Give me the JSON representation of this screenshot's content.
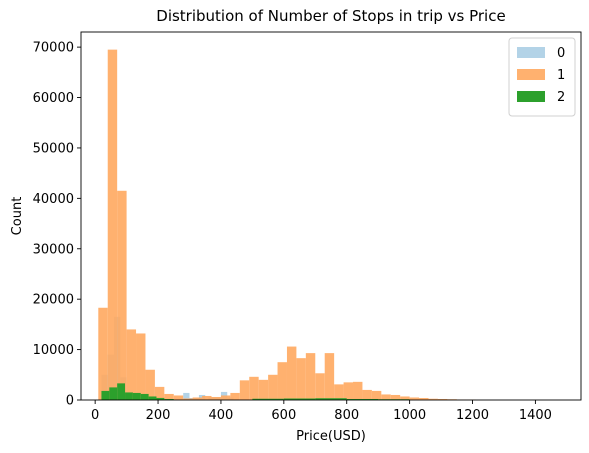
{
  "chart_data": {
    "type": "bar",
    "title": "Distribution of Number of Stops in trip vs Price",
    "xlabel": "Price(USD)",
    "ylabel": "Count",
    "xlim": [
      -45,
      1545
    ],
    "ylim": [
      0,
      73000
    ],
    "xticks": [
      0,
      200,
      400,
      600,
      800,
      1000,
      1200,
      1400
    ],
    "yticks": [
      0,
      10000,
      20000,
      30000,
      40000,
      50000,
      60000,
      70000
    ],
    "grid": false,
    "legend_position": "top-right",
    "series": [
      {
        "name": "0",
        "color": "#a6cbe3",
        "opacity": 0.85,
        "bins": [
          {
            "x0": 20,
            "x1": 40,
            "count": 5000
          },
          {
            "x0": 40,
            "x1": 60,
            "count": 9000
          },
          {
            "x0": 60,
            "x1": 80,
            "count": 16500
          },
          {
            "x0": 80,
            "x1": 100,
            "count": 4500
          },
          {
            "x0": 100,
            "x1": 120,
            "count": 1500
          },
          {
            "x0": 180,
            "x1": 220,
            "count": 600
          },
          {
            "x0": 280,
            "x1": 300,
            "count": 1400
          },
          {
            "x0": 300,
            "x1": 330,
            "count": 400
          },
          {
            "x0": 330,
            "x1": 350,
            "count": 1000
          },
          {
            "x0": 360,
            "x1": 400,
            "count": 500
          },
          {
            "x0": 400,
            "x1": 420,
            "count": 1600
          },
          {
            "x0": 420,
            "x1": 440,
            "count": 500
          }
        ]
      },
      {
        "name": "1",
        "color": "#ffa95f",
        "opacity": 0.9,
        "bins": [
          {
            "x0": 10,
            "x1": 40,
            "count": 18300
          },
          {
            "x0": 40,
            "x1": 70,
            "count": 69500
          },
          {
            "x0": 70,
            "x1": 100,
            "count": 41500
          },
          {
            "x0": 100,
            "x1": 130,
            "count": 14000
          },
          {
            "x0": 130,
            "x1": 160,
            "count": 13200
          },
          {
            "x0": 160,
            "x1": 190,
            "count": 6000
          },
          {
            "x0": 190,
            "x1": 220,
            "count": 2600
          },
          {
            "x0": 220,
            "x1": 250,
            "count": 1200
          },
          {
            "x0": 250,
            "x1": 280,
            "count": 900
          },
          {
            "x0": 280,
            "x1": 310,
            "count": 300
          },
          {
            "x0": 310,
            "x1": 340,
            "count": 500
          },
          {
            "x0": 340,
            "x1": 370,
            "count": 800
          },
          {
            "x0": 370,
            "x1": 400,
            "count": 600
          },
          {
            "x0": 400,
            "x1": 430,
            "count": 900
          },
          {
            "x0": 430,
            "x1": 460,
            "count": 1400
          },
          {
            "x0": 460,
            "x1": 490,
            "count": 3900
          },
          {
            "x0": 490,
            "x1": 520,
            "count": 4600
          },
          {
            "x0": 520,
            "x1": 550,
            "count": 4000
          },
          {
            "x0": 550,
            "x1": 580,
            "count": 5000
          },
          {
            "x0": 580,
            "x1": 610,
            "count": 7500
          },
          {
            "x0": 610,
            "x1": 640,
            "count": 10600
          },
          {
            "x0": 640,
            "x1": 670,
            "count": 8300
          },
          {
            "x0": 670,
            "x1": 700,
            "count": 9300
          },
          {
            "x0": 700,
            "x1": 730,
            "count": 5300
          },
          {
            "x0": 730,
            "x1": 760,
            "count": 9300
          },
          {
            "x0": 760,
            "x1": 790,
            "count": 3100
          },
          {
            "x0": 790,
            "x1": 820,
            "count": 3500
          },
          {
            "x0": 820,
            "x1": 850,
            "count": 3600
          },
          {
            "x0": 850,
            "x1": 880,
            "count": 2000
          },
          {
            "x0": 880,
            "x1": 910,
            "count": 1800
          },
          {
            "x0": 910,
            "x1": 940,
            "count": 1100
          },
          {
            "x0": 940,
            "x1": 970,
            "count": 1000
          },
          {
            "x0": 970,
            "x1": 1000,
            "count": 700
          },
          {
            "x0": 1000,
            "x1": 1030,
            "count": 500
          },
          {
            "x0": 1030,
            "x1": 1060,
            "count": 400
          },
          {
            "x0": 1060,
            "x1": 1090,
            "count": 250
          },
          {
            "x0": 1090,
            "x1": 1120,
            "count": 200
          },
          {
            "x0": 1120,
            "x1": 1150,
            "count": 150
          },
          {
            "x0": 1150,
            "x1": 1180,
            "count": 100
          },
          {
            "x0": 1180,
            "x1": 1210,
            "count": 80
          }
        ]
      },
      {
        "name": "2",
        "color": "#2ca02c",
        "opacity": 1,
        "bins": [
          {
            "x0": 20,
            "x1": 45,
            "count": 1800
          },
          {
            "x0": 45,
            "x1": 70,
            "count": 2500
          },
          {
            "x0": 70,
            "x1": 95,
            "count": 3300
          },
          {
            "x0": 95,
            "x1": 120,
            "count": 1500
          },
          {
            "x0": 120,
            "x1": 145,
            "count": 1400
          },
          {
            "x0": 145,
            "x1": 170,
            "count": 1200
          },
          {
            "x0": 170,
            "x1": 195,
            "count": 700
          },
          {
            "x0": 195,
            "x1": 220,
            "count": 400
          },
          {
            "x0": 220,
            "x1": 250,
            "count": 200
          },
          {
            "x0": 500,
            "x1": 600,
            "count": 250
          },
          {
            "x0": 600,
            "x1": 700,
            "count": 300
          },
          {
            "x0": 700,
            "x1": 800,
            "count": 350
          },
          {
            "x0": 800,
            "x1": 900,
            "count": 200
          },
          {
            "x0": 900,
            "x1": 1000,
            "count": 150
          }
        ]
      }
    ]
  }
}
